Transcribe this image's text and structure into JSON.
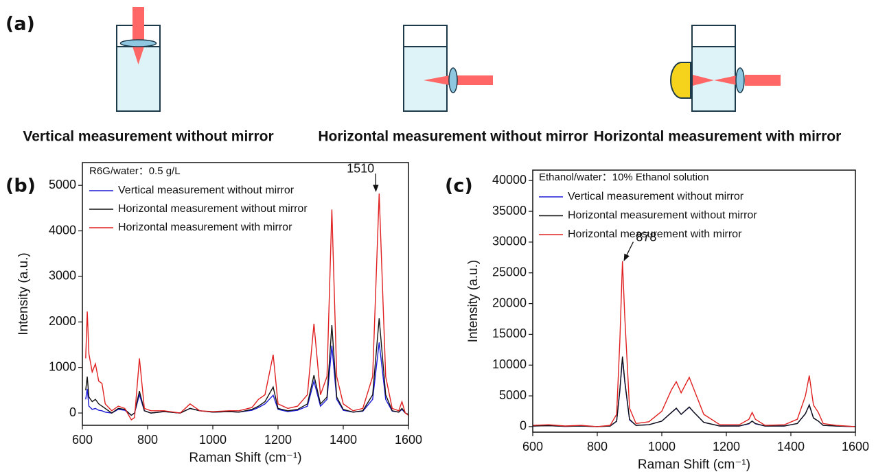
{
  "panel_labels": {
    "a": "(a)",
    "b": "(b)",
    "c": "(c)"
  },
  "diagrams": [
    {
      "caption": "Vertical measurement without mirror"
    },
    {
      "caption": "Horizontal measurement without mirror"
    },
    {
      "caption": "Horizontal measurement with mirror"
    }
  ],
  "chart_data": [
    {
      "type": "line",
      "annotation": "R6G/water：0.5 g/L",
      "peak_label": "1510",
      "x_label": "Raman Shift (cm⁻¹)",
      "y_label": "Intensity (a.u.)",
      "legend": "upper left",
      "x": [
        610,
        615,
        620,
        630,
        640,
        650,
        660,
        670,
        690,
        710,
        730,
        750,
        760,
        775,
        790,
        810,
        850,
        900,
        930,
        960,
        1000,
        1050,
        1080,
        1120,
        1140,
        1160,
        1185,
        1200,
        1230,
        1260,
        1290,
        1310,
        1330,
        1350,
        1365,
        1380,
        1400,
        1430,
        1460,
        1490,
        1510,
        1530,
        1550,
        1570,
        1580,
        1590,
        1600
      ],
      "series": [
        {
          "name": "Vertical measurement without mirror",
          "color": "#1a1ad6",
          "values": [
            300,
            530,
            150,
            80,
            100,
            60,
            50,
            20,
            0,
            80,
            60,
            -50,
            0,
            400,
            50,
            0,
            30,
            0,
            100,
            50,
            20,
            30,
            20,
            60,
            120,
            200,
            390,
            80,
            30,
            60,
            150,
            700,
            150,
            300,
            1480,
            300,
            60,
            20,
            40,
            300,
            1550,
            300,
            40,
            20,
            80,
            0,
            -30
          ]
        },
        {
          "name": "Horizontal measurement without mirror",
          "color": "#111111",
          "values": [
            500,
            800,
            350,
            250,
            300,
            200,
            150,
            100,
            0,
            100,
            80,
            -50,
            0,
            480,
            50,
            0,
            30,
            0,
            100,
            50,
            20,
            30,
            20,
            80,
            150,
            250,
            570,
            100,
            50,
            80,
            200,
            830,
            200,
            350,
            1930,
            350,
            80,
            20,
            50,
            400,
            2080,
            400,
            50,
            20,
            100,
            0,
            -30
          ]
        },
        {
          "name": "Horizontal measurement with mirror",
          "color": "#e02020",
          "values": [
            1200,
            2230,
            1300,
            900,
            1080,
            700,
            650,
            200,
            50,
            150,
            100,
            -150,
            -100,
            1200,
            100,
            50,
            50,
            0,
            200,
            50,
            30,
            50,
            50,
            120,
            300,
            400,
            1280,
            200,
            100,
            150,
            400,
            1960,
            400,
            800,
            4470,
            800,
            200,
            50,
            100,
            800,
            4820,
            800,
            100,
            50,
            250,
            0,
            -50
          ]
        }
      ],
      "xlim": [
        600,
        1600
      ],
      "xticks": [
        600,
        800,
        1000,
        1200,
        1400,
        1600
      ],
      "ylim": [
        -270,
        5500
      ],
      "yticks": [
        0,
        1000,
        2000,
        3000,
        4000,
        5000
      ]
    },
    {
      "type": "line",
      "annotation": "Ethanol/water：10% Ethanol solution",
      "peak_label": "878",
      "x_label": "Raman Shift (cm⁻¹)",
      "y_label": "Intensity (a.u.)",
      "legend": "upper left",
      "x": [
        600,
        650,
        700,
        750,
        800,
        840,
        860,
        870,
        878,
        885,
        900,
        920,
        960,
        1000,
        1030,
        1045,
        1060,
        1085,
        1100,
        1130,
        1180,
        1240,
        1270,
        1280,
        1290,
        1320,
        1380,
        1420,
        1445,
        1457,
        1470,
        1485,
        1500,
        1540,
        1600
      ],
      "series": [
        {
          "name": "Vertical measurement without mirror",
          "color": "#1a1ad6",
          "values": [
            100,
            150,
            50,
            100,
            0,
            100,
            850,
            5800,
            11200,
            7300,
            1100,
            200,
            300,
            900,
            2300,
            2950,
            2000,
            3150,
            2300,
            700,
            100,
            100,
            450,
            900,
            450,
            100,
            100,
            500,
            2100,
            3550,
            1400,
            900,
            200,
            100,
            0
          ]
        },
        {
          "name": "Horizontal measurement without mirror",
          "color": "#111111",
          "values": [
            100,
            150,
            50,
            100,
            0,
            100,
            900,
            6000,
            11400,
            7500,
            1200,
            200,
            300,
            900,
            2300,
            3000,
            2000,
            3200,
            2300,
            700,
            100,
            100,
            500,
            900,
            500,
            100,
            100,
            500,
            2100,
            3500,
            1400,
            900,
            200,
            100,
            0
          ]
        },
        {
          "name": "Horizontal measurement with mirror",
          "color": "#e02020",
          "values": [
            200,
            300,
            100,
            200,
            0,
            200,
            2000,
            14000,
            26900,
            18000,
            3000,
            500,
            800,
            2500,
            6000,
            7300,
            5500,
            8000,
            6000,
            2000,
            300,
            300,
            1200,
            2300,
            1200,
            200,
            300,
            1200,
            5000,
            8300,
            3500,
            2300,
            500,
            200,
            0
          ]
        }
      ],
      "xlim": [
        600,
        1600
      ],
      "xticks": [
        600,
        800,
        1000,
        1200,
        1400,
        1600
      ],
      "ylim": [
        -900,
        41700
      ],
      "yticks": [
        0,
        5000,
        10000,
        15000,
        20000,
        25000,
        30000,
        35000,
        40000
      ]
    }
  ]
}
